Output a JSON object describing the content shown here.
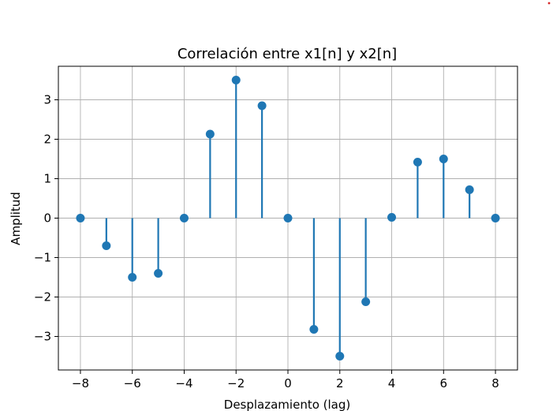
{
  "chart_data": {
    "type": "stem",
    "title": "Correlación entre x1[n] y x2[n]",
    "xlabel": "Desplazamiento (lag)",
    "ylabel": "Amplitud",
    "x": [
      -8,
      -7,
      -6,
      -5,
      -4,
      -3,
      -2,
      -1,
      0,
      1,
      2,
      3,
      4,
      5,
      6,
      7,
      8
    ],
    "y": [
      0,
      -0.7,
      -1.5,
      -1.4,
      0,
      2.13,
      3.5,
      2.85,
      0,
      -2.82,
      -3.5,
      -2.12,
      0.02,
      1.42,
      1.5,
      0.72,
      0
    ],
    "xlim": [
      -8.85,
      8.85
    ],
    "ylim": [
      -3.85,
      3.85
    ],
    "xticks": [
      -8,
      -6,
      -4,
      -2,
      0,
      2,
      4,
      6,
      8
    ],
    "yticks": [
      -3,
      -2,
      -1,
      0,
      1,
      2,
      3
    ],
    "xtick_labels": [
      "−8",
      "−6",
      "−4",
      "−2",
      "0",
      "2",
      "4",
      "6",
      "8"
    ],
    "ytick_labels": [
      "−3",
      "−2",
      "−1",
      "0",
      "1",
      "2",
      "3"
    ],
    "grid": true,
    "color": "#1f77b4"
  }
}
